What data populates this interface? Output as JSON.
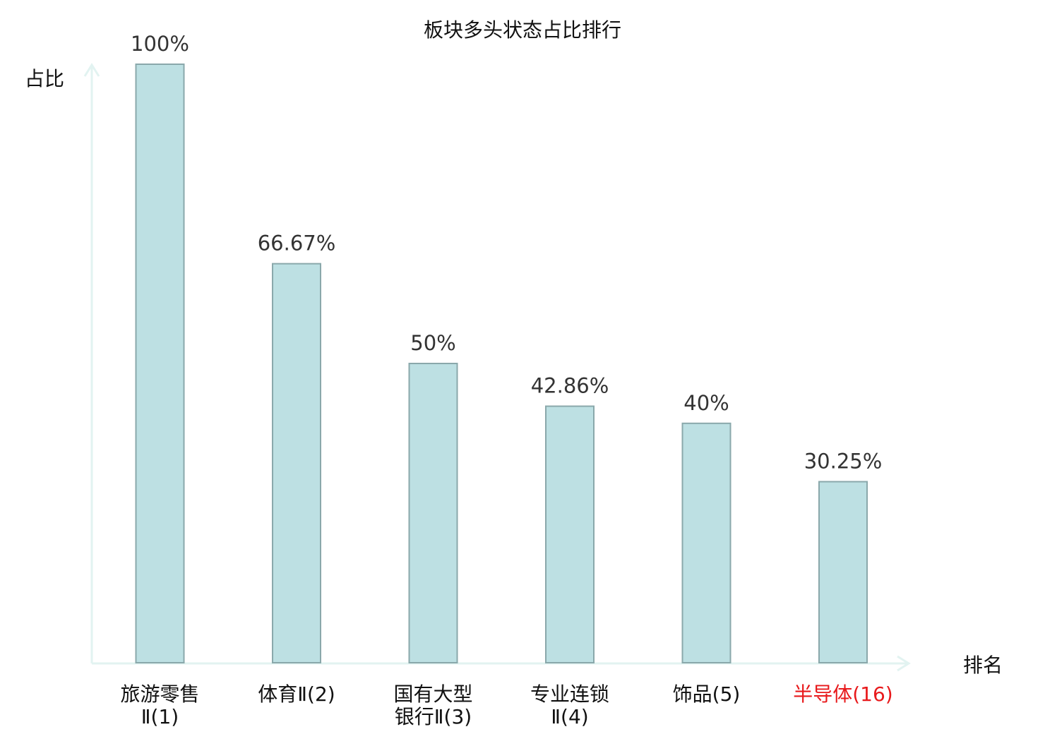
{
  "chart_data": {
    "type": "bar",
    "title": "板块多头状态占比排行",
    "ylabel": "占比",
    "xlabel": "排名",
    "categories": [
      [
        "旅游零售",
        "Ⅱ(1)"
      ],
      [
        "体育Ⅱ(2)"
      ],
      [
        "国有大型",
        "银行Ⅱ(3)"
      ],
      [
        "专业连锁",
        "Ⅱ(4)"
      ],
      [
        "饰品(5)"
      ],
      [
        "半导体(16)"
      ]
    ],
    "values": [
      100,
      66.67,
      50,
      42.86,
      40,
      30.25
    ],
    "value_labels": [
      "100%",
      "66.67%",
      "50%",
      "42.86%",
      "40%",
      "30.25%"
    ],
    "highlight_index": 5,
    "ylim": [
      0,
      100
    ],
    "grid": false,
    "colors": {
      "bar_fill": "#bde0e3",
      "bar_stroke": "#8aa8ab",
      "axis": "#e2f3f1",
      "text": "#333333",
      "highlight_text": "#e8191b"
    }
  }
}
